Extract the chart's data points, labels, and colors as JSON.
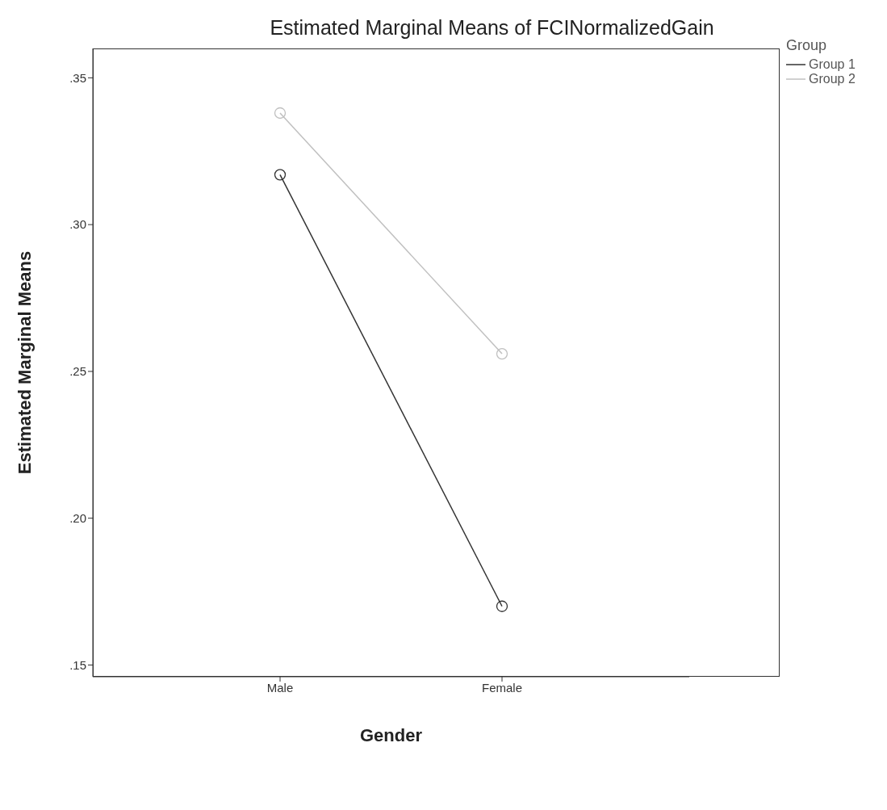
{
  "chart_data": {
    "type": "line",
    "title": "Estimated Marginal Means of FCINormalizedGain",
    "xlabel": "Gender",
    "ylabel": "Estimated Marginal Means",
    "legend_title": "Group",
    "categories": [
      "Male",
      "Female"
    ],
    "series": [
      {
        "name": "Group 1",
        "color": "#333333",
        "values": [
          0.317,
          0.17
        ]
      },
      {
        "name": "Group 2",
        "color": "#c0c0c0",
        "values": [
          0.338,
          0.256
        ]
      }
    ],
    "ylim": [
      0.146,
      0.36
    ],
    "yticks": [
      {
        "value": 0.15,
        "label": ".15"
      },
      {
        "value": 0.2,
        "label": ".20"
      },
      {
        "value": 0.25,
        "label": ".25"
      },
      {
        "value": 0.3,
        "label": ".30"
      },
      {
        "value": 0.35,
        "label": ".35"
      }
    ],
    "grid": false,
    "legend": "top right",
    "marker": "circle",
    "line_style": "solid"
  }
}
